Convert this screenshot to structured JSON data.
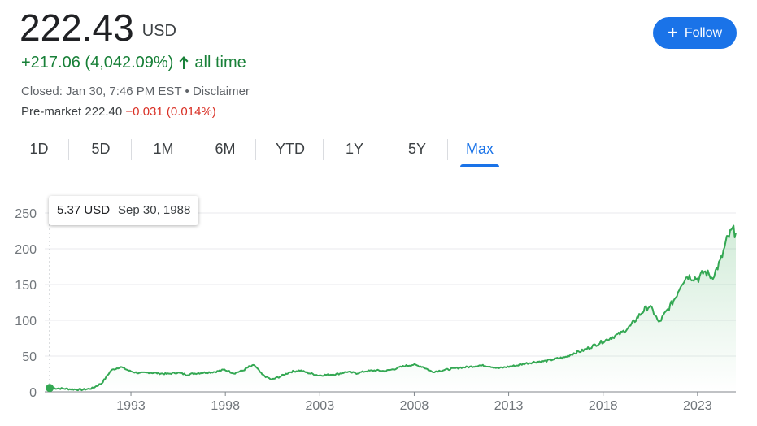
{
  "header": {
    "price": "222.43",
    "currency": "USD",
    "change": "+217.06 (4,042.09%)",
    "change_period": "all time",
    "closed_text": "Closed: Jan 30, 7:46 PM EST",
    "disclaimer": "Disclaimer",
    "premarket_label": "Pre-market",
    "premarket_price": "222.40",
    "premarket_change": "−0.031 (0.014%)",
    "follow_label": "Follow"
  },
  "tabs": [
    {
      "label": "1D"
    },
    {
      "label": "5D"
    },
    {
      "label": "1M"
    },
    {
      "label": "6M"
    },
    {
      "label": "YTD"
    },
    {
      "label": "1Y"
    },
    {
      "label": "5Y"
    },
    {
      "label": "Max"
    }
  ],
  "active_tab": "Max",
  "tooltip": {
    "value": "5.37 USD",
    "date": "Sep 30, 1988"
  },
  "colors": {
    "line": "#34a853",
    "accent": "#1a73e8",
    "positive": "#188038",
    "negative": "#d93025"
  },
  "chart_data": {
    "type": "area",
    "title": "",
    "xlabel": "",
    "ylabel": "",
    "y_ticks": [
      0,
      50,
      100,
      150,
      200,
      250
    ],
    "x_ticks": [
      "1993",
      "1998",
      "2003",
      "2008",
      "2013",
      "2018",
      "2023"
    ],
    "ylim": [
      0,
      250
    ],
    "xlim": [
      1988.7,
      2025.08
    ],
    "series": [
      {
        "x": [
          1988.75,
          1989.5,
          1990.0,
          1990.5,
          1991.0,
          1991.5,
          1992.0,
          1992.5,
          1993.0,
          1993.5,
          1994.0,
          1994.5,
          1995.0,
          1995.5,
          1996.0,
          1996.5,
          1997.0,
          1997.5,
          1998.0,
          1998.5,
          1999.0,
          1999.3,
          1999.6,
          2000.0,
          2000.5,
          2001.0,
          2001.5,
          2002.0,
          2002.5,
          2003.0,
          2003.5,
          2004.0,
          2004.5,
          2005.0,
          2005.5,
          2006.0,
          2006.5,
          2007.0,
          2007.5,
          2008.0,
          2008.5,
          2009.0,
          2009.5,
          2010.0,
          2010.5,
          2011.0,
          2011.5,
          2012.0,
          2012.5,
          2013.0,
          2013.5,
          2014.0,
          2014.5,
          2015.0,
          2015.5,
          2016.0,
          2016.5,
          2017.0,
          2017.5,
          2018.0,
          2018.5,
          2019.0,
          2019.5,
          2019.9,
          2020.2,
          2020.5,
          2020.8,
          2021.0,
          2021.3,
          2021.6,
          2021.9,
          2022.2,
          2022.5,
          2022.8,
          2023.1,
          2023.4,
          2023.6,
          2023.8,
          2024.0,
          2024.3,
          2024.6,
          2024.9,
          2025.08
        ],
        "y": [
          5.37,
          4.5,
          3.5,
          3,
          5,
          12,
          30,
          35,
          29,
          26,
          27,
          26,
          25,
          27,
          24,
          26,
          27,
          28,
          31,
          26,
          30,
          35,
          37,
          24,
          17,
          22,
          28,
          30,
          26,
          23,
          24,
          25,
          28,
          26,
          29,
          30,
          29,
          32,
          36,
          38,
          35,
          28,
          30,
          32,
          34,
          35,
          37,
          36,
          33,
          35,
          37,
          40,
          42,
          43,
          46,
          48,
          54,
          58,
          64,
          70,
          76,
          82,
          92,
          105,
          114,
          120,
          108,
          96,
          108,
          120,
          133,
          152,
          162,
          160,
          158,
          168,
          165,
          160,
          168,
          185,
          212,
          226,
          222.43
        ]
      }
    ]
  }
}
